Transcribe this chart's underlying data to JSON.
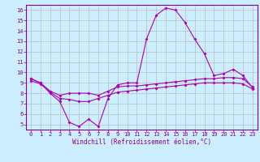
{
  "x": [
    0,
    1,
    2,
    3,
    4,
    5,
    6,
    7,
    8,
    9,
    10,
    11,
    12,
    13,
    14,
    15,
    16,
    17,
    18,
    19,
    20,
    21,
    22,
    23
  ],
  "line1": [
    9.4,
    9.0,
    8.0,
    7.2,
    5.2,
    4.8,
    5.5,
    4.8,
    7.5,
    8.8,
    9.0,
    9.0,
    13.2,
    15.5,
    16.2,
    16.0,
    14.8,
    13.2,
    11.8,
    9.7,
    9.9,
    10.3,
    9.7,
    8.5
  ],
  "line2": [
    9.4,
    9.0,
    8.2,
    7.8,
    8.0,
    8.0,
    8.0,
    7.8,
    8.2,
    8.6,
    8.7,
    8.7,
    8.8,
    8.9,
    9.0,
    9.1,
    9.2,
    9.3,
    9.4,
    9.4,
    9.5,
    9.5,
    9.4,
    8.6
  ],
  "line3": [
    9.2,
    8.9,
    8.1,
    7.5,
    7.4,
    7.2,
    7.2,
    7.5,
    7.8,
    8.1,
    8.2,
    8.3,
    8.4,
    8.5,
    8.6,
    8.7,
    8.8,
    8.9,
    9.0,
    9.0,
    9.0,
    9.0,
    8.9,
    8.4
  ],
  "line_color": "#aa00aa",
  "background_color": "#cceeff",
  "grid_color": "#bbbbbb",
  "ylim": [
    4.5,
    16.5
  ],
  "yticks": [
    5,
    6,
    7,
    8,
    9,
    10,
    11,
    12,
    13,
    14,
    15,
    16
  ],
  "xlim": [
    -0.5,
    23.5
  ],
  "xlabel": "Windchill (Refroidissement éolien,°C)",
  "font_color": "#880088",
  "tick_fontsize": 5.0,
  "xlabel_fontsize": 5.5
}
